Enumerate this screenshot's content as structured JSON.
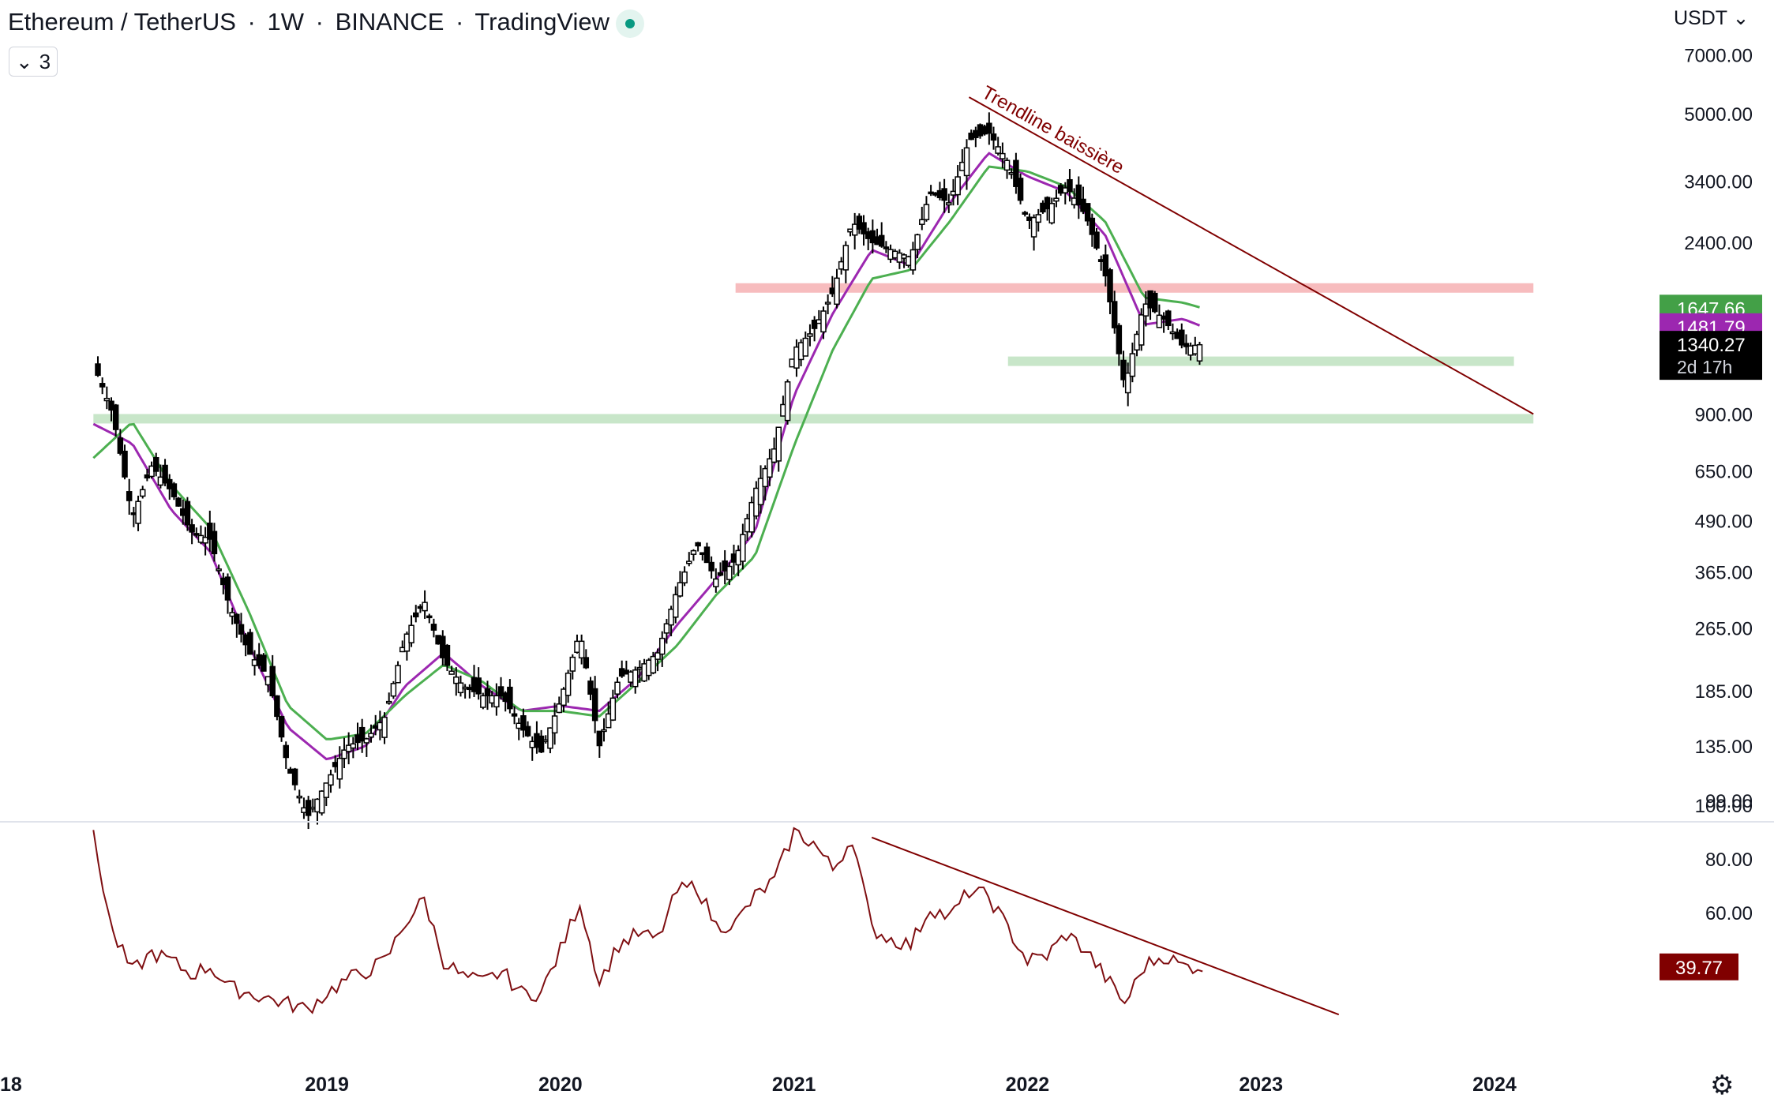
{
  "header": {
    "symbol": "Ethereum / TetherUS",
    "interval": "1W",
    "exchange": "BINANCE",
    "source": "TradingView",
    "indicator_count": "3",
    "currency": "USDT"
  },
  "colors": {
    "candle": "#000000",
    "ema_short": "#9c27b0",
    "ema_long": "#4caf50",
    "trendline": "#800000",
    "resistance_zone": "#f7bcbe",
    "support_zone": "#c8e6c9",
    "rsi": "#7f0f12"
  },
  "chart_data": [
    {
      "type": "candlestick",
      "scale": "log",
      "x_range": [
        "2018-01",
        "2024-06"
      ],
      "ylim": [
        90,
        8000
      ],
      "y_ticks": [
        "7000.00",
        "5000.00",
        "3400.00",
        "2400.00",
        "900.00",
        "650.00",
        "490.00",
        "365.00",
        "265.00",
        "185.00",
        "135.00",
        "99.00"
      ],
      "x_ticks": [
        "18",
        "2019",
        "2020",
        "2021",
        "2022",
        "2023",
        "2024"
      ],
      "price_labels": [
        {
          "series": "ema-long",
          "value": "1647.66",
          "color": "#43a047"
        },
        {
          "series": "ema-short",
          "value": "1481.79",
          "color": "#9c27b0"
        },
        {
          "series": "last-price",
          "value": "1340.27",
          "countdown": "2d 17h",
          "color": "#000000"
        }
      ],
      "series": [
        {
          "name": "price",
          "x": [
            "2018-01",
            "2018-02",
            "2018-03",
            "2018-04",
            "2018-05",
            "2018-06",
            "2018-07",
            "2018-08",
            "2018-09",
            "2018-10",
            "2018-11",
            "2018-12",
            "2019-01",
            "2019-02",
            "2019-03",
            "2019-04",
            "2019-05",
            "2019-06",
            "2019-07",
            "2019-08",
            "2019-09",
            "2019-10",
            "2019-11",
            "2019-12",
            "2020-01",
            "2020-02",
            "2020-03",
            "2020-04",
            "2020-05",
            "2020-06",
            "2020-07",
            "2020-08",
            "2020-09",
            "2020-10",
            "2020-11",
            "2020-12",
            "2021-01",
            "2021-02",
            "2021-03",
            "2021-04",
            "2021-05",
            "2021-06",
            "2021-07",
            "2021-08",
            "2021-09",
            "2021-10",
            "2021-11",
            "2021-12",
            "2022-01",
            "2022-02",
            "2022-03",
            "2022-04",
            "2022-05",
            "2022-06",
            "2022-07",
            "2022-08",
            "2022-09",
            "2022-10"
          ],
          "y": [
            1200,
            900,
            500,
            670,
            580,
            460,
            440,
            300,
            230,
            200,
            120,
            90,
            110,
            135,
            140,
            160,
            250,
            310,
            220,
            190,
            180,
            180,
            150,
            130,
            175,
            260,
            135,
            200,
            210,
            230,
            330,
            430,
            350,
            390,
            580,
            740,
            1300,
            1450,
            1800,
            2700,
            2400,
            2300,
            2200,
            3200,
            3000,
            4300,
            4500,
            3800,
            2700,
            2900,
            3300,
            2800,
            2000,
            1050,
            1700,
            1550,
            1320,
            1340
          ]
        },
        {
          "name": "ema-short",
          "x": [
            "2018-01",
            "2018-03",
            "2018-05",
            "2018-07",
            "2018-09",
            "2018-11",
            "2019-01",
            "2019-03",
            "2019-05",
            "2019-07",
            "2019-09",
            "2019-11",
            "2020-01",
            "2020-03",
            "2020-05",
            "2020-07",
            "2020-09",
            "2020-11",
            "2021-01",
            "2021-03",
            "2021-05",
            "2021-07",
            "2021-09",
            "2021-11",
            "2022-01",
            "2022-03",
            "2022-05",
            "2022-07",
            "2022-09",
            "2022-10"
          ],
          "y": [
            850,
            760,
            520,
            410,
            240,
            150,
            125,
            135,
            190,
            230,
            190,
            165,
            170,
            165,
            200,
            270,
            350,
            460,
            1000,
            1600,
            2300,
            2100,
            3000,
            4000,
            3500,
            3200,
            2500,
            1500,
            1550,
            1482
          ]
        },
        {
          "name": "ema-long",
          "x": [
            "2018-01",
            "2018-03",
            "2018-05",
            "2018-07",
            "2018-09",
            "2018-11",
            "2019-01",
            "2019-03",
            "2019-05",
            "2019-07",
            "2019-09",
            "2019-11",
            "2020-01",
            "2020-03",
            "2020-05",
            "2020-07",
            "2020-09",
            "2020-11",
            "2021-01",
            "2021-03",
            "2021-05",
            "2021-07",
            "2021-09",
            "2021-11",
            "2022-01",
            "2022-03",
            "2022-05",
            "2022-07",
            "2022-09",
            "2022-10"
          ],
          "y": [
            700,
            860,
            600,
            470,
            290,
            170,
            140,
            145,
            180,
            215,
            195,
            165,
            165,
            160,
            195,
            240,
            320,
            400,
            750,
            1300,
            1950,
            2050,
            2700,
            3700,
            3600,
            3300,
            2700,
            1750,
            1700,
            1648
          ]
        }
      ],
      "zones": [
        {
          "name": "resistance",
          "low": 1800,
          "high": 1900,
          "x_start": "2020-10",
          "x_end": "2024-03"
        },
        {
          "name": "support",
          "low": 1200,
          "high": 1250,
          "x_start": "2021-12",
          "x_end": "2024-02"
        },
        {
          "name": "support",
          "low": 860,
          "high": 900,
          "x_start": "2018-01",
          "x_end": "2024-03"
        }
      ],
      "trendline": {
        "label": "Trendline baissière",
        "x": [
          "2021-10",
          "2024-03"
        ],
        "y": [
          5500,
          900
        ]
      }
    },
    {
      "type": "line",
      "name": "rsi",
      "ylim": [
        0,
        100
      ],
      "y_ticks": [
        "100.00",
        "80.00",
        "60.00"
      ],
      "last_value": "39.77",
      "series": [
        {
          "name": "rsi",
          "x": [
            "2018-01",
            "2018-02",
            "2018-03",
            "2018-04",
            "2018-05",
            "2018-06",
            "2018-07",
            "2018-08",
            "2018-09",
            "2018-10",
            "2018-11",
            "2018-12",
            "2019-01",
            "2019-02",
            "2019-03",
            "2019-04",
            "2019-05",
            "2019-06",
            "2019-07",
            "2019-08",
            "2019-09",
            "2019-10",
            "2019-11",
            "2019-12",
            "2020-01",
            "2020-02",
            "2020-03",
            "2020-04",
            "2020-05",
            "2020-06",
            "2020-07",
            "2020-08",
            "2020-09",
            "2020-10",
            "2020-11",
            "2020-12",
            "2021-01",
            "2021-02",
            "2021-03",
            "2021-04",
            "2021-05",
            "2021-06",
            "2021-07",
            "2021-08",
            "2021-09",
            "2021-10",
            "2021-11",
            "2021-12",
            "2022-01",
            "2022-02",
            "2022-03",
            "2022-04",
            "2022-05",
            "2022-06",
            "2022-07",
            "2022-08",
            "2022-09",
            "2022-10"
          ],
          "y": [
            88,
            52,
            38,
            45,
            42,
            37,
            40,
            32,
            30,
            28,
            26,
            24,
            30,
            35,
            38,
            42,
            56,
            65,
            42,
            36,
            34,
            38,
            30,
            30,
            46,
            64,
            34,
            48,
            52,
            50,
            68,
            70,
            55,
            56,
            66,
            72,
            90,
            86,
            76,
            88,
            54,
            50,
            48,
            62,
            58,
            68,
            66,
            54,
            42,
            44,
            52,
            46,
            36,
            26,
            40,
            44,
            40,
            40
          ]
        }
      ],
      "trendline": {
        "x": [
          "2021-05",
          "2023-05"
        ],
        "y": [
          88,
          22
        ]
      }
    }
  ]
}
